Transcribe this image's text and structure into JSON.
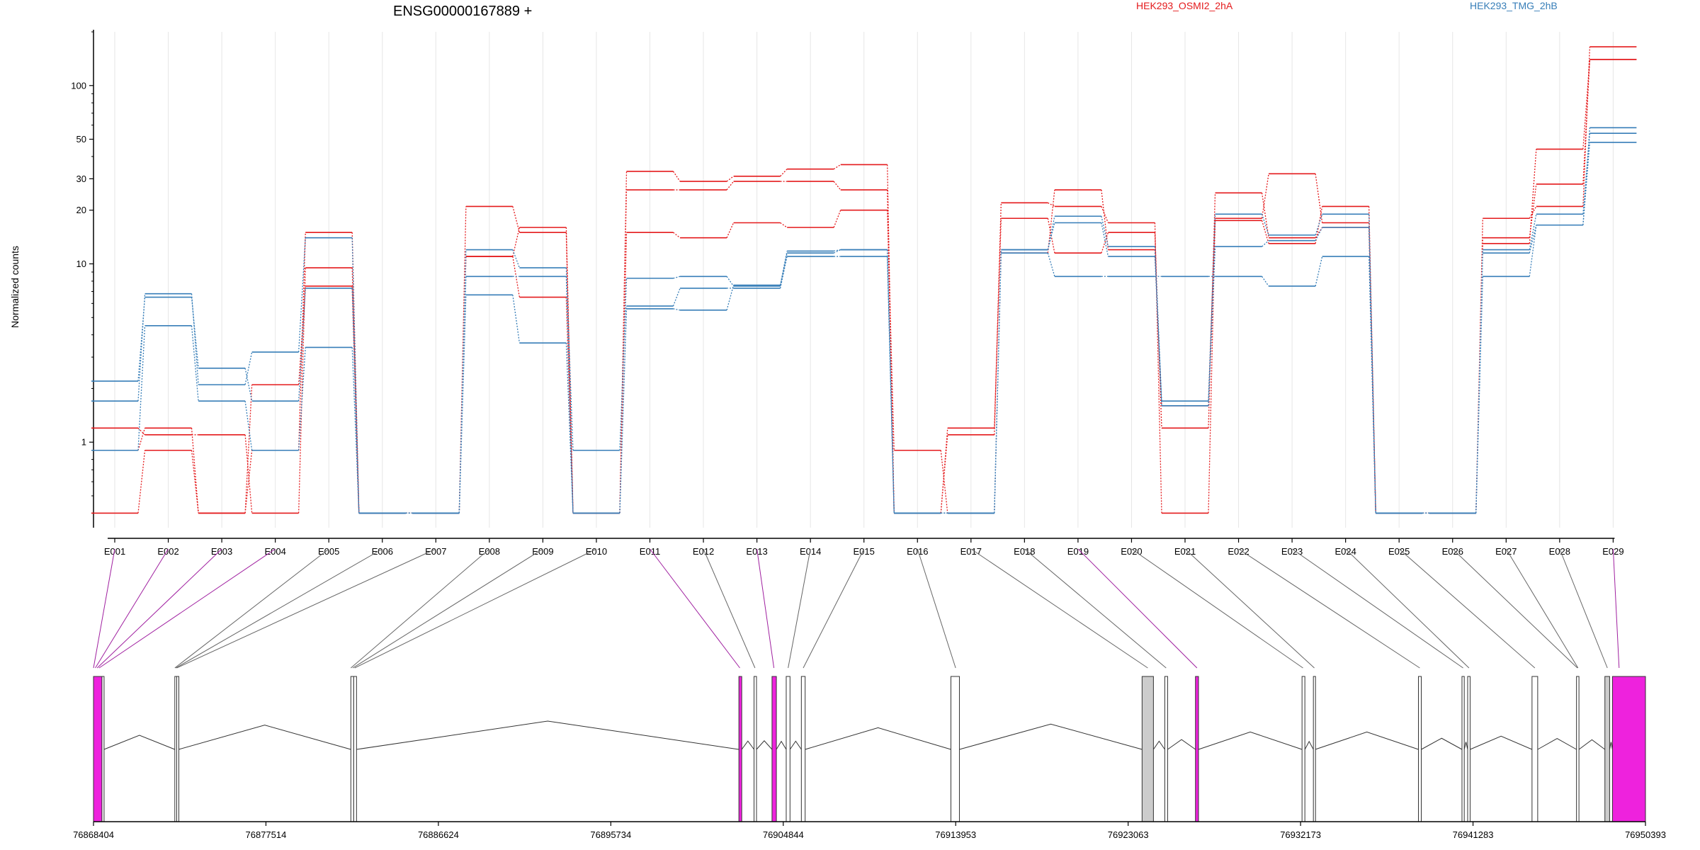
{
  "chart_data": {
    "type": "line",
    "title": "ENSG00000167889 +",
    "ylabel": "Normalized counts",
    "yscale": "log",
    "ylim": [
      0.35,
      200
    ],
    "yticks": [
      1,
      10,
      20,
      30,
      50,
      100
    ],
    "grid": "vertical",
    "legend_placement": "top",
    "exons": [
      "E001",
      "E002",
      "E003",
      "E004",
      "E005",
      "E006",
      "E007",
      "E008",
      "E009",
      "E010",
      "E011",
      "E012",
      "E013",
      "E014",
      "E015",
      "E016",
      "E017",
      "E018",
      "E019",
      "E020",
      "E021",
      "E022",
      "E023",
      "E024",
      "E025",
      "E026",
      "E027",
      "E028",
      "E029"
    ],
    "groups": [
      {
        "name": "HEK293_OSMI2_2hA",
        "color": "#e41a1c"
      },
      {
        "name": "HEK293_TMG_2hB",
        "color": "#377eb8"
      }
    ],
    "series": [
      {
        "group": 0,
        "values": [
          1.2,
          1.1,
          1.1,
          0.4,
          9.5,
          0.4,
          0.4,
          11,
          16,
          0.4,
          26,
          26,
          29,
          29,
          26,
          0.4,
          1.1,
          22,
          21,
          17,
          0.4,
          18,
          32,
          17,
          0.4,
          0.4,
          14,
          28,
          140
        ]
      },
      {
        "group": 0,
        "values": [
          0.4,
          0.9,
          0.4,
          2.1,
          7.5,
          0.4,
          0.4,
          11,
          6.5,
          0.4,
          33,
          29,
          31,
          34,
          36,
          0.4,
          1.2,
          18,
          11.5,
          15,
          1.2,
          25,
          14,
          16,
          0.4,
          0.4,
          13,
          44,
          140
        ]
      },
      {
        "group": 0,
        "values": [
          0.9,
          1.2,
          0.4,
          0.9,
          15,
          0.4,
          0.4,
          21,
          15,
          0.4,
          15,
          14,
          17,
          16,
          20,
          0.9,
          0.4,
          11.5,
          26,
          12,
          1.6,
          17.5,
          13,
          21,
          0.4,
          0.4,
          18,
          21,
          165
        ]
      },
      {
        "group": 1,
        "values": [
          1.7,
          6.8,
          2.1,
          3.2,
          14,
          0.4,
          0.4,
          12,
          9.5,
          0.9,
          8.3,
          8.5,
          7.5,
          11.5,
          12,
          0.4,
          0.4,
          12,
          18.5,
          12.5,
          1.7,
          19,
          14.5,
          19,
          0.4,
          0.4,
          12,
          19,
          54
        ]
      },
      {
        "group": 1,
        "values": [
          2.2,
          6.5,
          2.6,
          1.7,
          7.3,
          0.4,
          0.4,
          6.7,
          3.6,
          0.4,
          5.6,
          5.5,
          7.6,
          11.8,
          12,
          0.4,
          0.4,
          11.5,
          8.5,
          8.5,
          8.5,
          8.5,
          7.5,
          11,
          0.4,
          0.4,
          8.5,
          16.5,
          58
        ]
      },
      {
        "group": 1,
        "values": [
          0.9,
          4.5,
          1.7,
          0.9,
          3.4,
          0.4,
          0.4,
          8.5,
          8.5,
          0.4,
          5.8,
          7.3,
          7.3,
          11,
          11,
          0.4,
          0.4,
          12,
          17,
          11,
          1.6,
          12.5,
          13.5,
          16,
          0.4,
          0.4,
          11.5,
          16.5,
          48
        ]
      }
    ],
    "genome_ticks": [
      "76868404",
      "76877514",
      "76886624",
      "76895734",
      "76904844",
      "76913953",
      "76923063",
      "76932173",
      "76941283",
      "76950393"
    ],
    "gene_model_start": 76868404,
    "gene_model_end": 76950393,
    "gene_model_blocks": [
      {
        "start": 76868404,
        "end": 76868850,
        "fill": "#ee22dd"
      },
      {
        "start": 76868850,
        "end": 76868960,
        "fill": "#ffffff"
      },
      {
        "start": 76872700,
        "end": 76872800,
        "fill": "#ffffff"
      },
      {
        "start": 76872800,
        "end": 76872900,
        "fill": "#ffffff"
      },
      {
        "start": 76882000,
        "end": 76882150,
        "fill": "#ffffff"
      },
      {
        "start": 76882150,
        "end": 76882300,
        "fill": "#ffffff"
      },
      {
        "start": 76902500,
        "end": 76902650,
        "fill": "#ee22dd"
      },
      {
        "start": 76903300,
        "end": 76903430,
        "fill": "#ffffff"
      },
      {
        "start": 76904250,
        "end": 76904480,
        "fill": "#ee22dd"
      },
      {
        "start": 76905000,
        "end": 76905200,
        "fill": "#ffffff"
      },
      {
        "start": 76905800,
        "end": 76906000,
        "fill": "#ffffff"
      },
      {
        "start": 76913700,
        "end": 76914150,
        "fill": "#ffffff"
      },
      {
        "start": 76923800,
        "end": 76924400,
        "fill": "#cccccc"
      },
      {
        "start": 76925000,
        "end": 76925150,
        "fill": "#ffffff"
      },
      {
        "start": 76926620,
        "end": 76926780,
        "fill": "#ee22dd"
      },
      {
        "start": 76932250,
        "end": 76932400,
        "fill": "#ffffff"
      },
      {
        "start": 76932850,
        "end": 76932950,
        "fill": "#ffffff"
      },
      {
        "start": 76938400,
        "end": 76938550,
        "fill": "#ffffff"
      },
      {
        "start": 76940700,
        "end": 76940820,
        "fill": "#ffffff"
      },
      {
        "start": 76941000,
        "end": 76941130,
        "fill": "#ffffff"
      },
      {
        "start": 76944400,
        "end": 76944700,
        "fill": "#ffffff"
      },
      {
        "start": 76946750,
        "end": 76946880,
        "fill": "#ffffff"
      },
      {
        "start": 76948250,
        "end": 76948500,
        "fill": "#cccccc"
      },
      {
        "start": 76948650,
        "end": 76950393,
        "fill": "#ee22dd"
      }
    ],
    "exon_links": [
      {
        "genome": 76868404,
        "colored": true
      },
      {
        "genome": 76868500,
        "colored": true
      },
      {
        "genome": 76868600,
        "colored": true
      },
      {
        "genome": 76868700,
        "colored": true
      },
      {
        "genome": 76872700,
        "colored": false
      },
      {
        "genome": 76872750,
        "colored": false
      },
      {
        "genome": 76872800,
        "colored": false
      },
      {
        "genome": 76882000,
        "colored": false
      },
      {
        "genome": 76882100,
        "colored": false
      },
      {
        "genome": 76882200,
        "colored": false
      },
      {
        "genome": 76902550,
        "colored": true
      },
      {
        "genome": 76903350,
        "colored": false
      },
      {
        "genome": 76904350,
        "colored": true
      },
      {
        "genome": 76905100,
        "colored": false
      },
      {
        "genome": 76905900,
        "colored": false
      },
      {
        "genome": 76913950,
        "colored": false
      },
      {
        "genome": 76924100,
        "colored": false
      },
      {
        "genome": 76925070,
        "colored": false
      },
      {
        "genome": 76926700,
        "colored": true
      },
      {
        "genome": 76932300,
        "colored": false
      },
      {
        "genome": 76932900,
        "colored": false
      },
      {
        "genome": 76938470,
        "colored": false
      },
      {
        "genome": 76940760,
        "colored": false
      },
      {
        "genome": 76941070,
        "colored": false
      },
      {
        "genome": 76944550,
        "colored": false
      },
      {
        "genome": 76946800,
        "colored": false
      },
      {
        "genome": 76946830,
        "colored": false
      },
      {
        "genome": 76948380,
        "colored": false
      },
      {
        "genome": 76949000,
        "colored": true
      }
    ]
  }
}
